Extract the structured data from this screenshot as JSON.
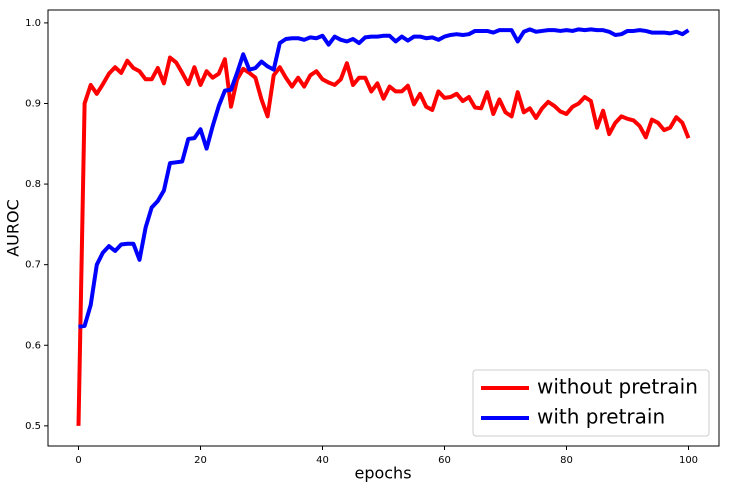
{
  "chart_data": {
    "type": "line",
    "x_label": "epochs",
    "y_label": "AUROC",
    "x": [
      0,
      1,
      2,
      3,
      4,
      5,
      6,
      7,
      8,
      9,
      10,
      11,
      12,
      13,
      14,
      15,
      16,
      17,
      18,
      19,
      20,
      21,
      22,
      23,
      24,
      25,
      26,
      27,
      28,
      29,
      30,
      31,
      32,
      33,
      34,
      35,
      36,
      37,
      38,
      39,
      40,
      41,
      42,
      43,
      44,
      45,
      46,
      47,
      48,
      49,
      50,
      51,
      52,
      53,
      54,
      55,
      56,
      57,
      58,
      59,
      60,
      61,
      62,
      63,
      64,
      65,
      66,
      67,
      68,
      69,
      70,
      71,
      72,
      73,
      74,
      75,
      76,
      77,
      78,
      79,
      80,
      81,
      82,
      83,
      84,
      85,
      86,
      87,
      88,
      89,
      90,
      91,
      92,
      93,
      94,
      95,
      96,
      97,
      98,
      99,
      100
    ],
    "series": [
      {
        "name": "without pretrain",
        "color": "#ff0000",
        "values": [
          0.5,
          0.9,
          0.923,
          0.912,
          0.924,
          0.937,
          0.945,
          0.938,
          0.953,
          0.944,
          0.94,
          0.93,
          0.93,
          0.944,
          0.925,
          0.957,
          0.951,
          0.938,
          0.924,
          0.945,
          0.923,
          0.94,
          0.932,
          0.937,
          0.955,
          0.896,
          0.93,
          0.943,
          0.938,
          0.932,
          0.905,
          0.884,
          0.935,
          0.945,
          0.932,
          0.921,
          0.932,
          0.921,
          0.935,
          0.94,
          0.93,
          0.926,
          0.923,
          0.93,
          0.95,
          0.923,
          0.932,
          0.932,
          0.915,
          0.925,
          0.906,
          0.921,
          0.915,
          0.915,
          0.922,
          0.899,
          0.912,
          0.896,
          0.892,
          0.915,
          0.907,
          0.908,
          0.912,
          0.903,
          0.908,
          0.895,
          0.894,
          0.914,
          0.887,
          0.905,
          0.889,
          0.884,
          0.914,
          0.889,
          0.894,
          0.882,
          0.894,
          0.902,
          0.897,
          0.89,
          0.887,
          0.896,
          0.9,
          0.908,
          0.903,
          0.87,
          0.891,
          0.862,
          0.876,
          0.884,
          0.881,
          0.879,
          0.872,
          0.858,
          0.88,
          0.876,
          0.867,
          0.87,
          0.883,
          0.876,
          0.857
        ]
      },
      {
        "name": "with pretrain",
        "color": "#0000ff",
        "values": [
          0.623,
          0.624,
          0.65,
          0.7,
          0.715,
          0.723,
          0.717,
          0.725,
          0.726,
          0.726,
          0.706,
          0.746,
          0.771,
          0.779,
          0.792,
          0.826,
          0.827,
          0.828,
          0.856,
          0.857,
          0.868,
          0.844,
          0.872,
          0.897,
          0.916,
          0.917,
          0.938,
          0.961,
          0.942,
          0.944,
          0.952,
          0.946,
          0.942,
          0.975,
          0.98,
          0.981,
          0.981,
          0.979,
          0.982,
          0.981,
          0.984,
          0.973,
          0.983,
          0.979,
          0.977,
          0.98,
          0.975,
          0.982,
          0.983,
          0.983,
          0.984,
          0.984,
          0.977,
          0.983,
          0.978,
          0.983,
          0.983,
          0.981,
          0.982,
          0.979,
          0.983,
          0.985,
          0.986,
          0.985,
          0.986,
          0.99,
          0.99,
          0.99,
          0.988,
          0.991,
          0.991,
          0.991,
          0.977,
          0.989,
          0.992,
          0.989,
          0.99,
          0.991,
          0.991,
          0.99,
          0.991,
          0.99,
          0.992,
          0.991,
          0.992,
          0.991,
          0.991,
          0.989,
          0.985,
          0.986,
          0.99,
          0.99,
          0.991,
          0.99,
          0.988,
          0.988,
          0.988,
          0.987,
          0.989,
          0.986,
          0.991
        ]
      }
    ],
    "xlim": [
      -5,
      105
    ],
    "xticks": [
      0,
      20,
      40,
      60,
      80,
      100
    ],
    "ylim": [
      0.475,
      1.016
    ],
    "yticks": [
      0.5,
      0.6,
      0.7,
      0.8,
      0.9,
      {
        "value": 1,
        "label": "1.0"
      }
    ],
    "legend": "lower right"
  }
}
